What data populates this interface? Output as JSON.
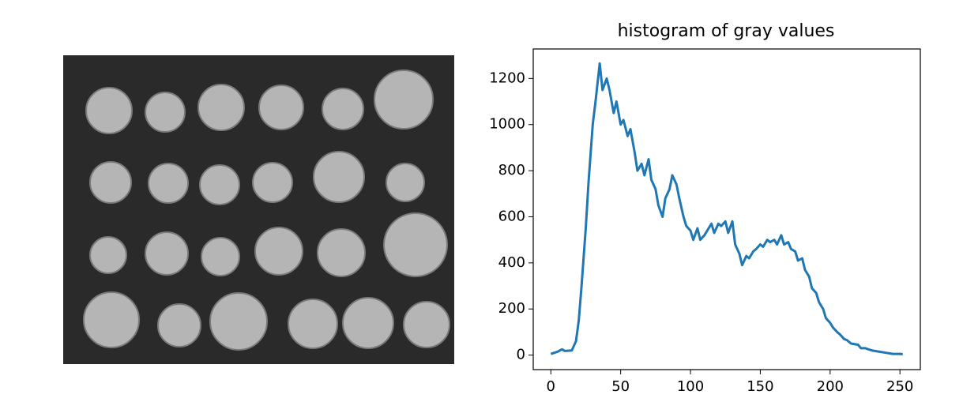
{
  "chart_data": {
    "type": "line",
    "title": "histogram of gray values",
    "x": [
      0,
      5,
      8,
      10,
      15,
      18,
      20,
      22,
      25,
      27,
      30,
      32,
      35,
      37,
      40,
      42,
      45,
      47,
      50,
      52,
      55,
      57,
      60,
      62,
      65,
      67,
      70,
      72,
      75,
      77,
      80,
      82,
      85,
      87,
      90,
      92,
      95,
      97,
      100,
      102,
      105,
      107,
      110,
      112,
      115,
      117,
      120,
      122,
      125,
      127,
      130,
      132,
      135,
      137,
      140,
      142,
      145,
      147,
      150,
      152,
      155,
      157,
      160,
      162,
      165,
      167,
      170,
      172,
      175,
      177,
      180,
      182,
      185,
      187,
      190,
      192,
      195,
      197,
      200,
      202,
      205,
      207,
      210,
      212,
      215,
      220,
      222,
      225,
      230,
      235,
      240,
      245,
      250,
      252
    ],
    "values": [
      5,
      15,
      25,
      18,
      20,
      60,
      150,
      300,
      550,
      750,
      1000,
      1100,
      1265,
      1150,
      1200,
      1150,
      1050,
      1100,
      1000,
      1020,
      950,
      980,
      880,
      800,
      830,
      780,
      850,
      760,
      720,
      650,
      600,
      680,
      720,
      780,
      740,
      680,
      600,
      560,
      540,
      500,
      550,
      500,
      520,
      540,
      570,
      530,
      570,
      560,
      580,
      530,
      580,
      480,
      440,
      390,
      430,
      420,
      450,
      460,
      480,
      470,
      500,
      490,
      500,
      480,
      520,
      480,
      490,
      460,
      450,
      410,
      420,
      370,
      340,
      290,
      270,
      230,
      200,
      160,
      140,
      120,
      100,
      90,
      70,
      65,
      50,
      45,
      30,
      30,
      20,
      15,
      10,
      5,
      5,
      4
    ],
    "color": "#1f77b4",
    "xlim": [
      -12.6,
      264.6
    ],
    "xticks": [
      0,
      50,
      100,
      150,
      200,
      250
    ],
    "ylim": [
      -63,
      1328
    ],
    "yticks": [
      0,
      200,
      400,
      600,
      800,
      1000,
      1200
    ]
  }
}
